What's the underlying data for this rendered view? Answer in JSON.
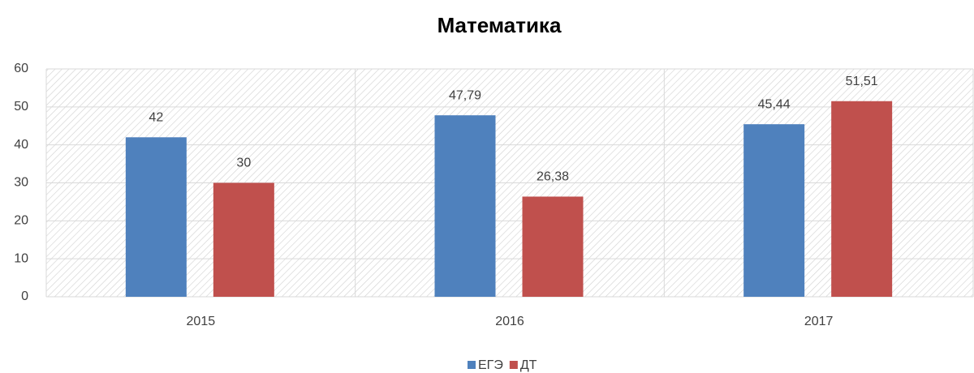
{
  "chart_data": {
    "type": "bar",
    "title": "Математика",
    "categories": [
      "2015",
      "2016",
      "2017"
    ],
    "series": [
      {
        "name": "ЕГЭ",
        "color": "#4f81bd",
        "values": [
          42,
          47.79,
          45.44
        ],
        "value_labels": [
          "42",
          "47,79",
          "45,44"
        ]
      },
      {
        "name": "ДТ",
        "color": "#c0504d",
        "values": [
          30,
          26.38,
          51.51
        ],
        "value_labels": [
          "30",
          "26,38",
          "51,51"
        ]
      }
    ],
    "ylim": [
      0,
      60
    ],
    "yticks": [
      0,
      10,
      20,
      30,
      40,
      50,
      60
    ],
    "grid": true,
    "legend": "bottom"
  }
}
